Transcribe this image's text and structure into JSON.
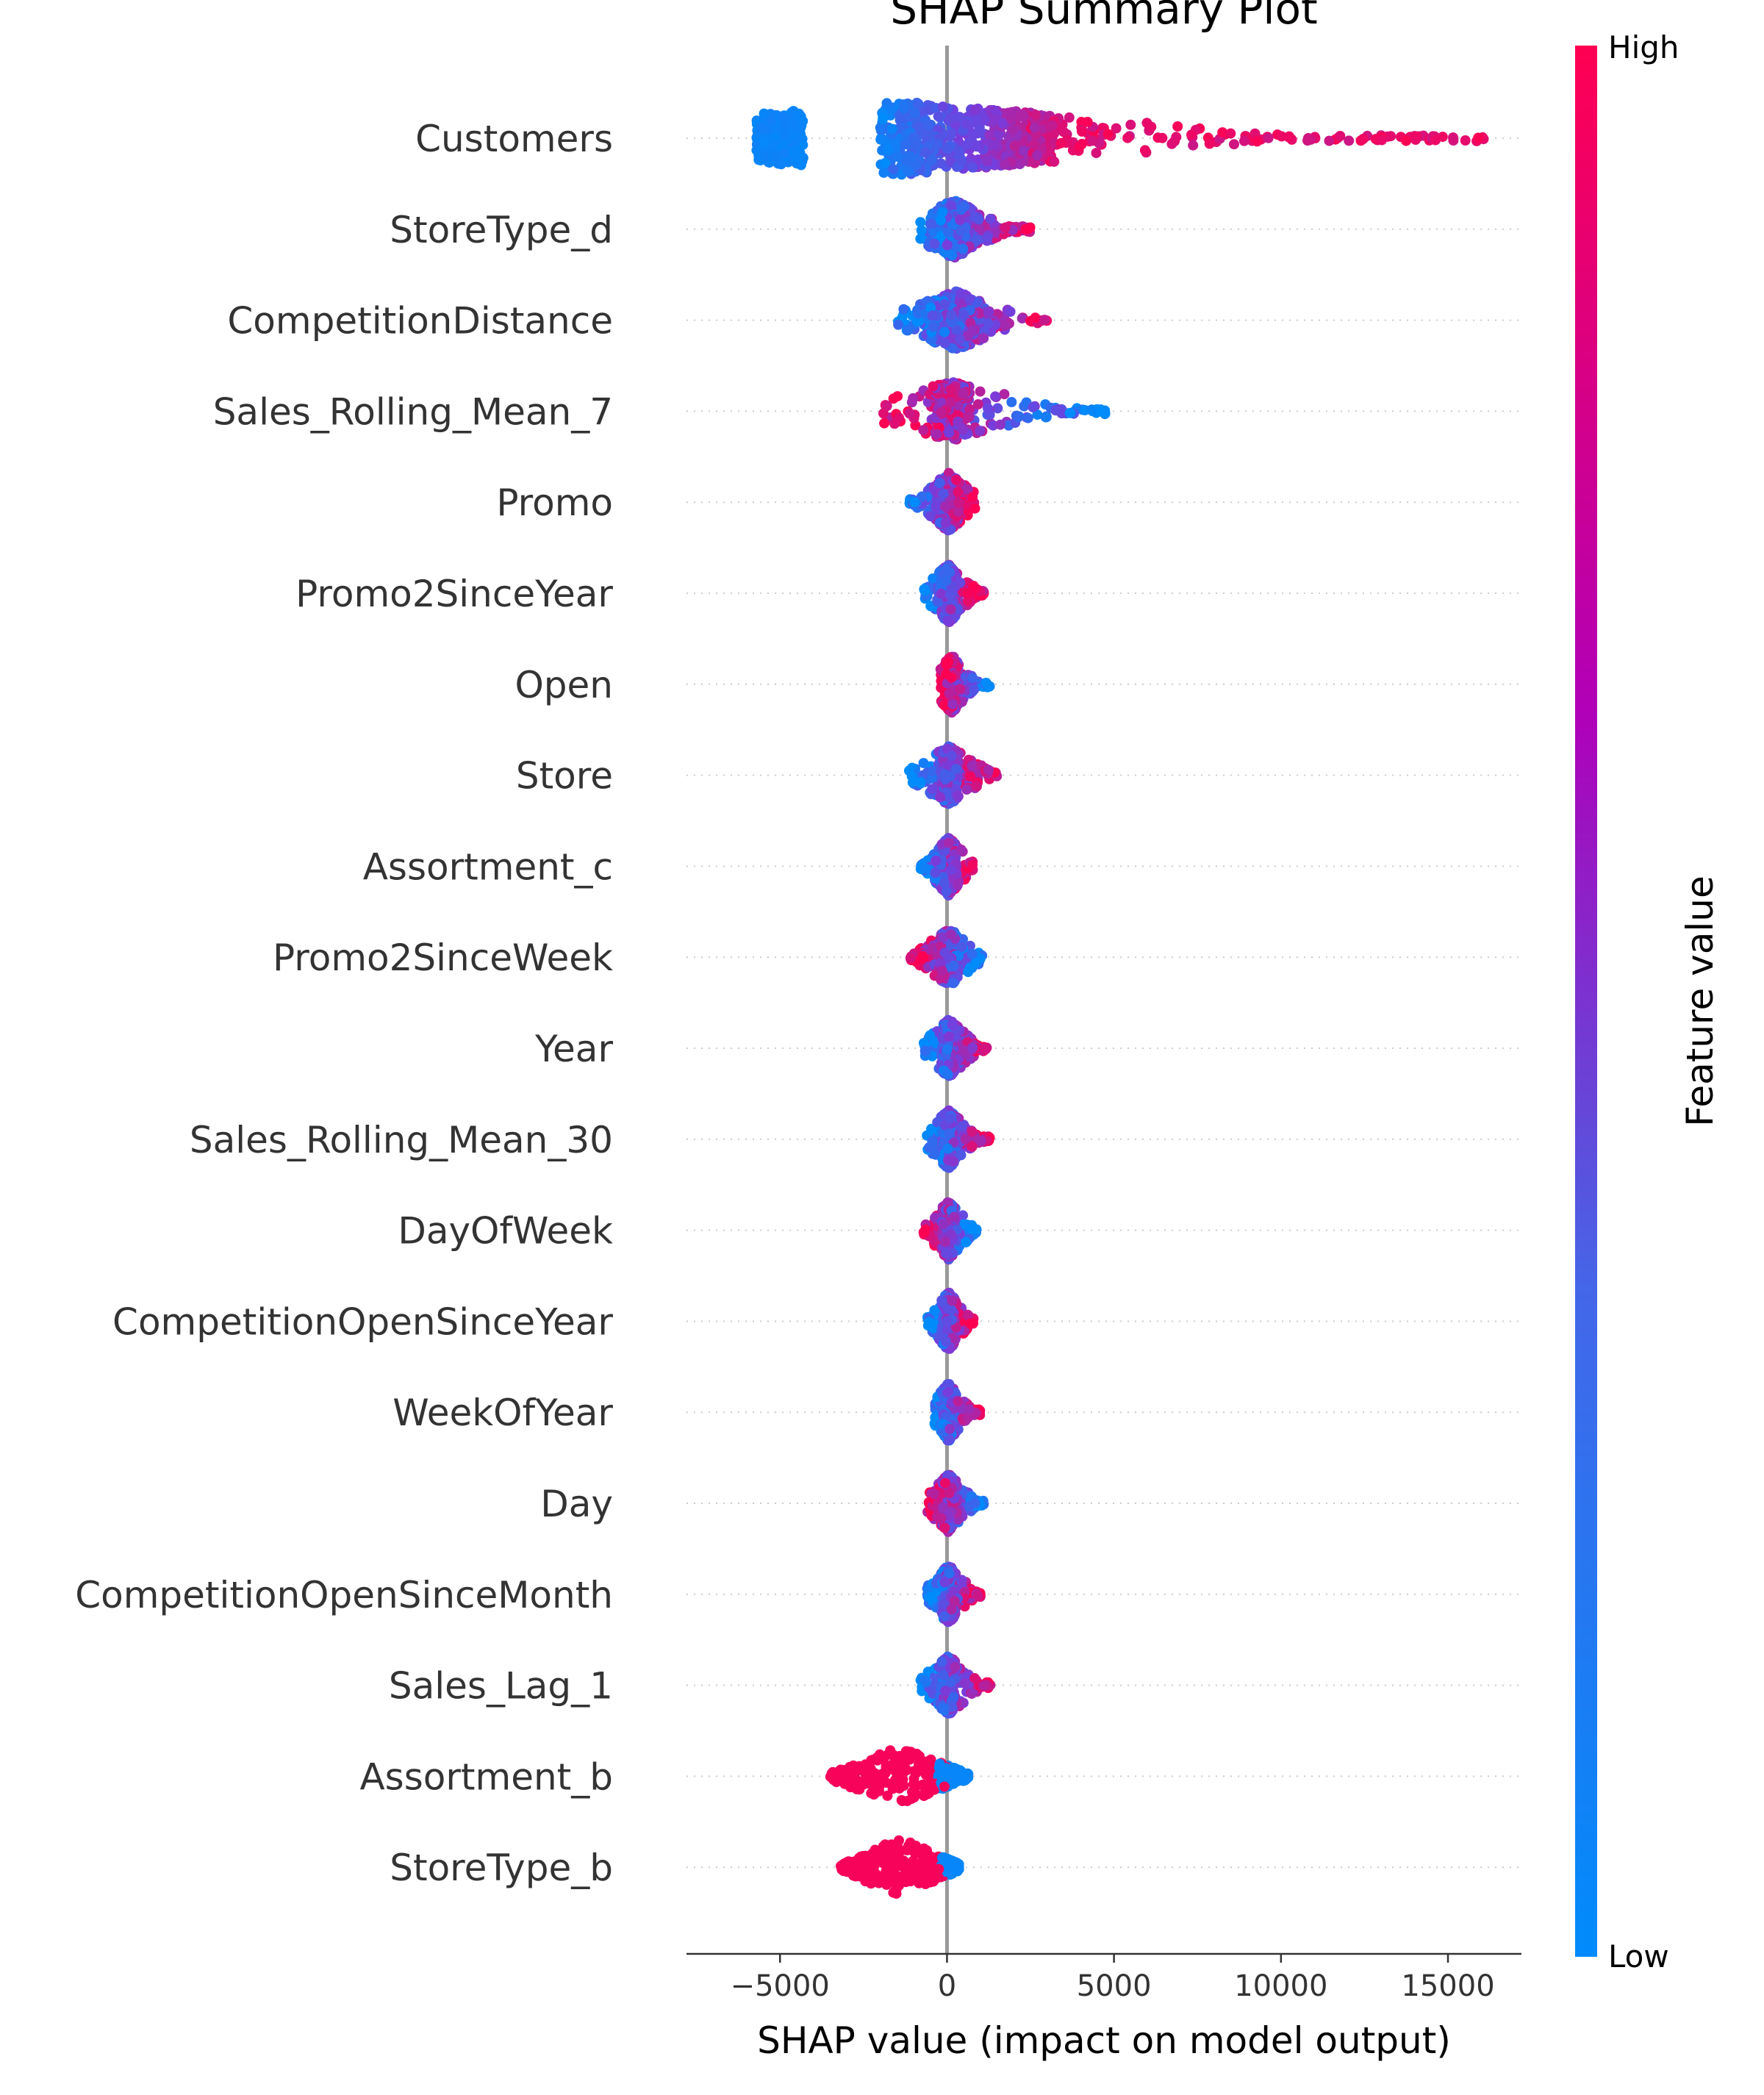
{
  "chart_data": {
    "type": "scatter",
    "title": "SHAP Summary Plot",
    "xlabel": "SHAP value (impact on model output)",
    "xlim": [
      -7800,
      17200
    ],
    "xticks": [
      -5000,
      0,
      5000,
      10000,
      15000
    ],
    "xtick_labels": [
      "−5000",
      "0",
      "5000",
      "10000",
      "15000"
    ],
    "colorbar": {
      "label": "Feature value",
      "high": "High",
      "low": "Low",
      "color_low": "#008bfb",
      "color_high": "#ff0052"
    },
    "features": [
      {
        "name": "Customers",
        "min": -6700,
        "max": 16100,
        "core_lo": -5500,
        "core_hi": 2800,
        "low_centers": [
          -5000
        ],
        "high_tail": [
          14500,
          16100
        ]
      },
      {
        "name": "StoreType_d",
        "min": -800,
        "max": 2500,
        "core_lo": -600,
        "core_hi": 1000
      },
      {
        "name": "CompetitionDistance",
        "min": -1500,
        "max": 3200,
        "core_lo": -1000,
        "core_hi": 1500
      },
      {
        "name": "Sales_Rolling_Mean_7",
        "min": -2000,
        "max": 4800,
        "core_lo": -500,
        "core_hi": 800
      },
      {
        "name": "Promo",
        "min": -1200,
        "max": 900,
        "core_lo": -400,
        "core_hi": 500
      },
      {
        "name": "Promo2SinceYear",
        "min": -700,
        "max": 1100,
        "core_lo": -300,
        "core_hi": 400
      },
      {
        "name": "Open",
        "min": -200,
        "max": 1300,
        "core_lo": -100,
        "core_hi": 400
      },
      {
        "name": "Store",
        "min": -1200,
        "max": 1500,
        "core_lo": -300,
        "core_hi": 400
      },
      {
        "name": "Assortment_c",
        "min": -800,
        "max": 800,
        "core_lo": -300,
        "core_hi": 400
      },
      {
        "name": "Promo2SinceWeek",
        "min": -1100,
        "max": 1100,
        "core_lo": -300,
        "core_hi": 400
      },
      {
        "name": "Year",
        "min": -700,
        "max": 1200,
        "core_lo": -200,
        "core_hi": 300
      },
      {
        "name": "Sales_Rolling_Mean_30",
        "min": -600,
        "max": 1300,
        "core_lo": -200,
        "core_hi": 300
      },
      {
        "name": "DayOfWeek",
        "min": -700,
        "max": 900,
        "core_lo": -200,
        "core_hi": 300
      },
      {
        "name": "CompetitionOpenSinceYear",
        "min": -600,
        "max": 800,
        "core_lo": -200,
        "core_hi": 300
      },
      {
        "name": "WeekOfYear",
        "min": -400,
        "max": 1000,
        "core_lo": -200,
        "core_hi": 300
      },
      {
        "name": "Day",
        "min": -600,
        "max": 1100,
        "core_lo": -200,
        "core_hi": 300
      },
      {
        "name": "CompetitionOpenSinceMonth",
        "min": -600,
        "max": 1000,
        "core_lo": -200,
        "core_hi": 300
      },
      {
        "name": "Sales_Lag_1",
        "min": -800,
        "max": 1300,
        "core_lo": -200,
        "core_hi": 300
      },
      {
        "name": "Assortment_b",
        "min": -3500,
        "max": 700,
        "core_lo": -3400,
        "core_hi": 500
      },
      {
        "name": "StoreType_b",
        "min": -3200,
        "max": 400,
        "core_lo": -3100,
        "core_hi": 300
      }
    ]
  }
}
